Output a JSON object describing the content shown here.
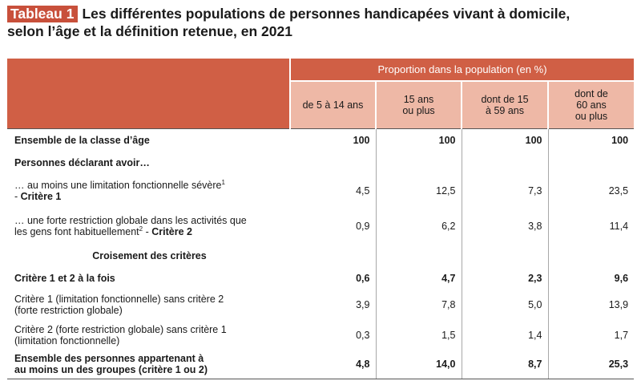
{
  "title": {
    "tag": "Tableau 1",
    "line1": "Les différentes populations de personnes handicapées vivant à domicile,",
    "line2": "selon l’âge et la définition retenue, en 2021"
  },
  "header": {
    "group": "Proportion dans la population (en %)",
    "col1": "de 5 à 14 ans",
    "col2a": "15 ans",
    "col2b": "ou plus",
    "col3a": "dont de 15",
    "col3b": "à 59 ans",
    "col4a": "dont de",
    "col4b": "60 ans",
    "col4c": "ou plus"
  },
  "rows": {
    "r1": {
      "label": "Ensemble de la classe d’âge",
      "v": [
        "100",
        "100",
        "100",
        "100"
      ]
    },
    "r2": {
      "label": "Personnes déclarant avoir…"
    },
    "r3": {
      "label_a": "… au moins une limitation fonctionnelle sévère",
      "sup": "1",
      "label_b": "- ",
      "label_bold": "Critère 1",
      "v": [
        "4,5",
        "12,5",
        "7,3",
        "23,5"
      ]
    },
    "r4": {
      "label_a": "… une forte restriction globale dans les activités que",
      "label_b": "les gens font habituellement",
      "sup": "2",
      "label_c": " - ",
      "label_bold": "Critère 2",
      "v": [
        "0,9",
        "6,2",
        "3,8",
        "11,4"
      ]
    },
    "r5": {
      "label": "Croisement des critères"
    },
    "r6": {
      "label": "Critère 1 et 2 à la fois",
      "v": [
        "0,6",
        "4,7",
        "2,3",
        "9,6"
      ]
    },
    "r7": {
      "label_a": "Critère 1 (limitation fonctionnelle) sans critère 2",
      "label_b": "(forte restriction globale)",
      "v": [
        "3,9",
        "7,8",
        "5,0",
        "13,9"
      ]
    },
    "r8": {
      "label_a": "Critère 2 (forte restriction globale) sans critère 1",
      "label_b": "(limitation fonctionnelle)",
      "v": [
        "0,3",
        "1,5",
        "1,4",
        "1,7"
      ]
    },
    "r9": {
      "label_a": "Ensemble des personnes appartenant à",
      "label_b": "au moins un des groupes (critère 1 ou 2)",
      "v": [
        "4,8",
        "14,0",
        "8,7",
        "25,3"
      ]
    }
  }
}
